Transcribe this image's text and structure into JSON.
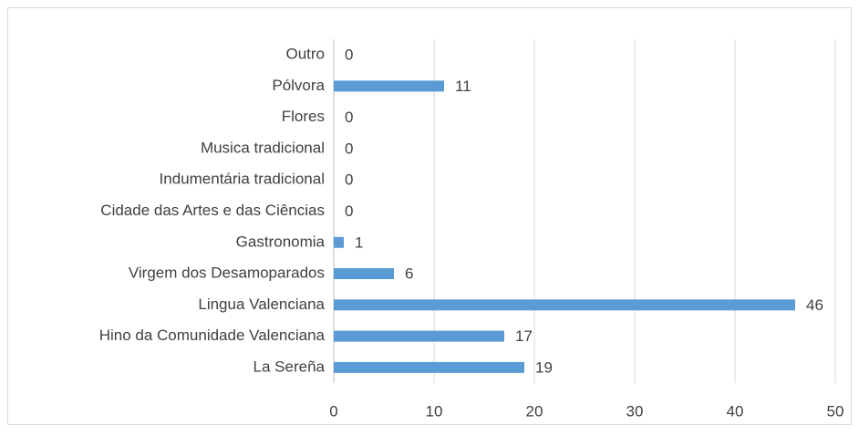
{
  "chart_data": {
    "type": "barh",
    "categories": [
      "La Sereña",
      "Hino da Comunidade Valenciana",
      "Lingua Valenciana",
      "Virgem dos Desamoparados",
      "Gastronomia",
      "Cidade das Artes e das Ciências",
      "Indumentária tradicional",
      "Musica tradicional",
      "Flores",
      "Pólvora",
      "Outro"
    ],
    "values": [
      19,
      17,
      46,
      6,
      1,
      0,
      0,
      0,
      0,
      11,
      0
    ],
    "color": "#5b9bd5",
    "xlim": [
      0,
      50
    ],
    "xticks": [
      0,
      10,
      20,
      30,
      40,
      50
    ],
    "grid": true
  }
}
